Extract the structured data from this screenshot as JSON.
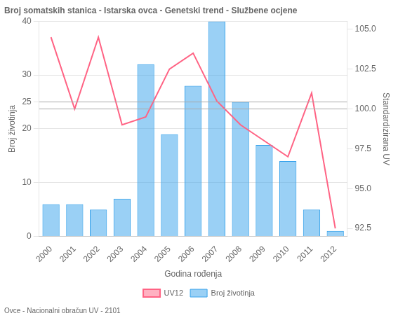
{
  "chart_data": {
    "type": "bar",
    "title": "Broj somatskih stanica - Istarska ovca - Genetski trend - Službene ocjene",
    "subtitle": "Ovce - Nacionalni obračun UV - 2101",
    "xlabel": "Godina rođenja",
    "ylabel": "Broj životinja",
    "y2label": "Standardizirana UV",
    "categories": [
      "2000",
      "2001",
      "2002",
      "2003",
      "2004",
      "2005",
      "2006",
      "2007",
      "2008",
      "2009",
      "2010",
      "2011",
      "2012"
    ],
    "series": [
      {
        "name": "Broj životinja",
        "type": "bar",
        "values": [
          6,
          6,
          5,
          7,
          32,
          19,
          28,
          40,
          25,
          17,
          14,
          5,
          1
        ]
      },
      {
        "name": "UV12",
        "type": "line",
        "axis": "y2",
        "values": [
          104.5,
          100.0,
          104.5,
          99.0,
          99.5,
          102.5,
          103.5,
          100.5,
          99.0,
          98.0,
          97.0,
          101.0,
          92.5
        ]
      }
    ],
    "ylim": [
      0,
      40
    ],
    "yticks": [
      0,
      10,
      20,
      25,
      30,
      40
    ],
    "y2lim": [
      92.0,
      105.5
    ],
    "y2ticks": [
      92.5,
      {
        "value": 95,
        "label": "95.0"
      },
      97.5,
      {
        "value": 100,
        "label": "100.0"
      },
      102.5,
      {
        "value": 105,
        "label": "105.0"
      }
    ],
    "reference_lines": [
      {
        "value": 25,
        "axis": "y"
      },
      {
        "value": 100.0,
        "axis": "y2"
      }
    ],
    "grid": true,
    "legend": "bottom"
  }
}
